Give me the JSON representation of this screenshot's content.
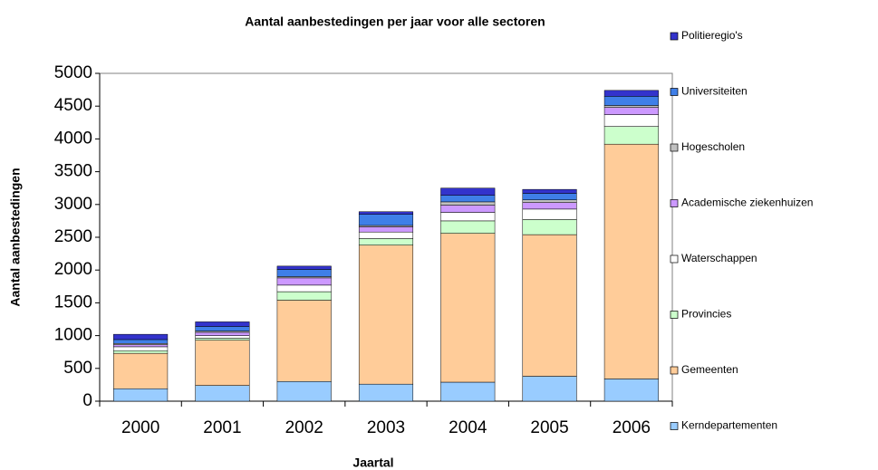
{
  "chart_data": {
    "type": "stacked_bar",
    "title": "Aantal aanbestedingen per jaar voor alle sectoren",
    "x_label": "Jaartal",
    "y_label": "Aantal aanbestedingen",
    "categories": [
      "2000",
      "2001",
      "2002",
      "2003",
      "2004",
      "2005",
      "2006"
    ],
    "series": [
      {
        "name": "Kerndepartementen",
        "color": "#99ccff",
        "values": [
          190,
          240,
          300,
          260,
          290,
          380,
          340
        ]
      },
      {
        "name": "Gemeenten",
        "color": "#ffcc99",
        "values": [
          540,
          690,
          1240,
          2120,
          2270,
          2160,
          3580
        ]
      },
      {
        "name": "Provincies",
        "color": "#ccffcc",
        "values": [
          40,
          30,
          130,
          100,
          190,
          230,
          270
        ]
      },
      {
        "name": "Waterschappen",
        "color": "#ffffff",
        "values": [
          60,
          40,
          100,
          100,
          130,
          160,
          180
        ]
      },
      {
        "name": "Academische ziekenhuizen",
        "color": "#cc99ff",
        "values": [
          30,
          50,
          110,
          80,
          110,
          100,
          110
        ]
      },
      {
        "name": "Hogescholen",
        "color": "#c0c0c0",
        "values": [
          20,
          20,
          20,
          20,
          50,
          40,
          30
        ]
      },
      {
        "name": "Universiteiten",
        "color": "#3f7fe8",
        "values": [
          60,
          70,
          110,
          170,
          100,
          100,
          140
        ]
      },
      {
        "name": "Politieregio's",
        "color": "#3333cc",
        "values": [
          80,
          70,
          50,
          40,
          110,
          60,
          90
        ]
      }
    ],
    "ylim": [
      0,
      5000
    ],
    "yticks": [
      0,
      500,
      1000,
      1500,
      2000,
      2500,
      3000,
      3500,
      4000,
      4500,
      5000
    ],
    "legend": "right"
  }
}
